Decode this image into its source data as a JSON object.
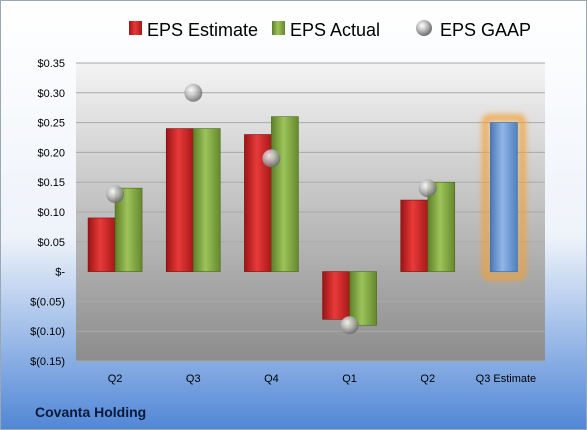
{
  "company": "Covanta Holding",
  "legend": [
    {
      "label": "EPS Estimate",
      "icon": "red-square-icon"
    },
    {
      "label": "EPS Actual",
      "icon": "green-square-icon"
    },
    {
      "label": "EPS GAAP",
      "icon": "gray-sphere-icon"
    }
  ],
  "colors": {
    "estimate": "#d42a2a",
    "actual": "#8db34a",
    "future_estimate": "#78a4dc",
    "gaap": "#b8b8b8",
    "highlight": "#f2a23a"
  },
  "chart_data": {
    "type": "bar",
    "categories": [
      "Q2",
      "Q3",
      "Q4",
      "Q1",
      "Q2",
      "Q3 Estimate"
    ],
    "series": [
      {
        "name": "EPS Estimate",
        "values": [
          0.09,
          0.24,
          0.23,
          -0.08,
          0.12,
          null
        ]
      },
      {
        "name": "EPS Actual",
        "values": [
          0.14,
          0.24,
          0.26,
          -0.09,
          0.15,
          0.25
        ]
      },
      {
        "name": "EPS GAAP",
        "values": [
          0.13,
          0.3,
          0.19,
          -0.09,
          0.14,
          null
        ]
      }
    ],
    "highlighted_category": "Q3 Estimate",
    "ylim": [
      -0.15,
      0.35
    ],
    "yticks": [
      0.35,
      0.3,
      0.25,
      0.2,
      0.15,
      0.1,
      0.05,
      0,
      -0.05,
      -0.1,
      -0.15
    ],
    "ytick_labels": [
      "$0.35",
      "$0.30",
      "$0.25",
      "$0.20",
      "$0.15",
      "$0.10",
      "$0.05",
      "$-",
      "$(0.05)",
      "$(0.10)",
      "$(0.15)"
    ],
    "grid": true,
    "legend_position": "top"
  }
}
